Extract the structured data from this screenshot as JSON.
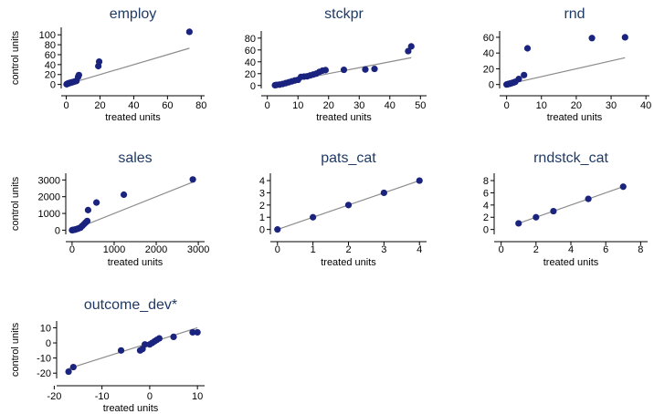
{
  "colors": {
    "point": "#1a237e",
    "line": "#8c8c8c",
    "title": "#1f3a66",
    "text": "#000000"
  },
  "chart_data": [
    {
      "type": "scatter",
      "title": "employ",
      "xlabel": "treated units",
      "ylabel": "control units",
      "xlim": [
        -3,
        82
      ],
      "ylim": [
        -8,
        115
      ],
      "xticks": [
        0,
        20,
        40,
        60,
        80
      ],
      "yticks": [
        0,
        20,
        40,
        60,
        80,
        100
      ],
      "points": [
        [
          0.2,
          0.5
        ],
        [
          0.5,
          1
        ],
        [
          0.8,
          1.5
        ],
        [
          1,
          2
        ],
        [
          1.5,
          2.5
        ],
        [
          2,
          3
        ],
        [
          2.5,
          3.5
        ],
        [
          3,
          4
        ],
        [
          3.5,
          4.5
        ],
        [
          4,
          5
        ],
        [
          5,
          6
        ],
        [
          6,
          7
        ],
        [
          7,
          15
        ],
        [
          7.5,
          19
        ],
        [
          19,
          37
        ],
        [
          19.5,
          46
        ],
        [
          73,
          106
        ]
      ],
      "fit_line": [
        [
          0,
          0
        ],
        [
          73,
          73
        ]
      ]
    },
    {
      "type": "scatter",
      "title": "stckpr",
      "xlabel": "treated units",
      "ylabel": "",
      "xlim": [
        -2,
        52
      ],
      "ylim": [
        -5,
        92
      ],
      "xticks": [
        0,
        10,
        20,
        30,
        40,
        50
      ],
      "yticks": [
        0,
        20,
        40,
        60,
        80
      ],
      "points": [
        [
          2.5,
          0.5
        ],
        [
          3,
          1
        ],
        [
          4,
          1.5
        ],
        [
          5,
          2.5
        ],
        [
          6,
          4
        ],
        [
          7,
          5.5
        ],
        [
          8,
          7
        ],
        [
          9,
          8.5
        ],
        [
          10,
          9.5
        ],
        [
          11,
          14.5
        ],
        [
          12,
          15
        ],
        [
          13,
          15.5
        ],
        [
          14,
          17
        ],
        [
          15,
          18.5
        ],
        [
          16,
          20
        ],
        [
          17,
          23
        ],
        [
          18,
          25
        ],
        [
          19,
          26
        ],
        [
          25,
          26.5
        ],
        [
          32,
          27
        ],
        [
          35,
          28
        ],
        [
          46,
          58
        ],
        [
          47,
          66
        ]
      ],
      "fit_line": [
        [
          2.5,
          2.5
        ],
        [
          47,
          47
        ]
      ]
    },
    {
      "type": "scatter",
      "title": "rnd",
      "xlabel": "treated units",
      "ylabel": "",
      "xlim": [
        -2,
        41
      ],
      "ylim": [
        -5,
        68
      ],
      "xticks": [
        0,
        10,
        20,
        30,
        40
      ],
      "yticks": [
        0,
        20,
        40,
        60
      ],
      "points": [
        [
          0,
          0
        ],
        [
          0.2,
          0.3
        ],
        [
          0.4,
          0.5
        ],
        [
          0.6,
          0.7
        ],
        [
          0.8,
          1
        ],
        [
          1,
          1.2
        ],
        [
          1.3,
          1.5
        ],
        [
          1.6,
          2
        ],
        [
          2,
          2.5
        ],
        [
          2.5,
          3.5
        ],
        [
          3.5,
          7
        ],
        [
          5,
          12
        ],
        [
          6,
          46
        ],
        [
          24.5,
          59
        ],
        [
          34,
          60
        ]
      ],
      "fit_line": [
        [
          0,
          0
        ],
        [
          34,
          34
        ]
      ]
    },
    {
      "type": "scatter",
      "title": "sales",
      "xlabel": "treated units",
      "ylabel": "control units",
      "xlim": [
        -150,
        3150
      ],
      "ylim": [
        -250,
        3400
      ],
      "xticks": [
        0,
        1000,
        2000,
        3000
      ],
      "yticks": [
        0,
        1000,
        2000,
        3000
      ],
      "points": [
        [
          0,
          0
        ],
        [
          20,
          10
        ],
        [
          40,
          20
        ],
        [
          60,
          30
        ],
        [
          80,
          40
        ],
        [
          100,
          60
        ],
        [
          130,
          80
        ],
        [
          160,
          110
        ],
        [
          200,
          150
        ],
        [
          240,
          250
        ],
        [
          280,
          350
        ],
        [
          320,
          450
        ],
        [
          360,
          550
        ],
        [
          380,
          1200
        ],
        [
          580,
          1650
        ],
        [
          1230,
          2120
        ],
        [
          2870,
          3030
        ]
      ],
      "fit_line": [
        [
          0,
          0
        ],
        [
          2870,
          2870
        ]
      ]
    },
    {
      "type": "scatter",
      "title": "pats_cat",
      "xlabel": "treated units",
      "ylabel": "",
      "xlim": [
        -0.2,
        4.2
      ],
      "ylim": [
        -0.4,
        4.6
      ],
      "xticks": [
        0,
        1,
        2,
        3,
        4
      ],
      "yticks": [
        0,
        1,
        2,
        3,
        4
      ],
      "points": [
        [
          0,
          0
        ],
        [
          1,
          1
        ],
        [
          2,
          2
        ],
        [
          3,
          3
        ],
        [
          4,
          4
        ]
      ],
      "fit_line": [
        [
          0,
          0
        ],
        [
          4,
          4
        ]
      ]
    },
    {
      "type": "scatter",
      "title": "rndstck_cat",
      "xlabel": "treated units",
      "ylabel": "",
      "xlim": [
        -0.4,
        8.4
      ],
      "ylim": [
        -0.8,
        9.2
      ],
      "xticks": [
        0,
        2,
        4,
        6,
        8
      ],
      "yticks": [
        0,
        2,
        4,
        6,
        8
      ],
      "points": [
        [
          1,
          1
        ],
        [
          2,
          2
        ],
        [
          3,
          3
        ],
        [
          5,
          5
        ],
        [
          7,
          7
        ]
      ],
      "fit_line": [
        [
          1,
          1
        ],
        [
          7,
          7
        ]
      ]
    },
    {
      "type": "scatter",
      "title": "outcome_dev*",
      "xlabel": "treated units",
      "ylabel": "control units",
      "xlim": [
        -19.5,
        11.5
      ],
      "ylim": [
        -23.5,
        14.5
      ],
      "xticks": [
        -20,
        -10,
        0,
        10
      ],
      "yticks": [
        -20,
        -10,
        0,
        10
      ],
      "points": [
        [
          -17,
          -19
        ],
        [
          -16,
          -16
        ],
        [
          -6,
          -5
        ],
        [
          -2,
          -5
        ],
        [
          -1.5,
          -4
        ],
        [
          -1,
          -1
        ],
        [
          0,
          -1
        ],
        [
          0.5,
          0
        ],
        [
          1,
          1
        ],
        [
          1.5,
          2
        ],
        [
          2,
          3
        ],
        [
          5,
          4
        ],
        [
          9,
          7
        ],
        [
          10,
          7
        ]
      ],
      "fit_line": [
        [
          -17,
          -17
        ],
        [
          10,
          10
        ]
      ]
    }
  ]
}
